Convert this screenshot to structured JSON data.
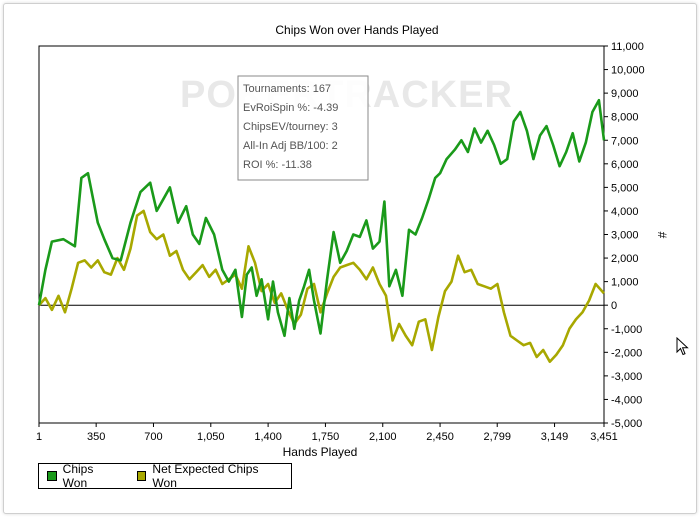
{
  "chart_data": {
    "type": "line",
    "title": "Chips Won over Hands Played",
    "xlabel": "Hands Played",
    "ylabel": "#",
    "xlim": [
      1,
      3451
    ],
    "ylim": [
      -5000,
      11000
    ],
    "x_ticks": [
      "1",
      "350",
      "700",
      "1,050",
      "1,400",
      "1,750",
      "2,100",
      "2,450",
      "2,799",
      "3,149",
      "3,451"
    ],
    "y_ticks": [
      "11,000",
      "10,000",
      "9,000",
      "8,000",
      "7,000",
      "6,000",
      "5,000",
      "4,000",
      "3,000",
      "2,000",
      "1,000",
      "0",
      "-1,000",
      "-2,000",
      "-3,000",
      "-4,000",
      "-5,000"
    ],
    "y_tick_values": [
      11000,
      10000,
      9000,
      8000,
      7000,
      6000,
      5000,
      4000,
      3000,
      2000,
      1000,
      0,
      -1000,
      -2000,
      -3000,
      -4000,
      -5000
    ],
    "x_tick_values": [
      1,
      350,
      700,
      1050,
      1400,
      1750,
      2100,
      2450,
      2799,
      3149,
      3451
    ],
    "grid": false,
    "legend_position": "bottom-left",
    "series": [
      {
        "name": "Chips Won",
        "color": "#1a9a1a",
        "x": [
          1,
          40,
          80,
          150,
          220,
          260,
          300,
          360,
          400,
          450,
          500,
          560,
          620,
          680,
          720,
          760,
          800,
          850,
          900,
          940,
          980,
          1020,
          1070,
          1120,
          1160,
          1200,
          1240,
          1270,
          1300,
          1330,
          1360,
          1400,
          1430,
          1460,
          1500,
          1530,
          1560,
          1590,
          1620,
          1650,
          1680,
          1720,
          1760,
          1800,
          1840,
          1880,
          1920,
          1960,
          2000,
          2040,
          2080,
          2110,
          2140,
          2180,
          2220,
          2260,
          2300,
          2340,
          2380,
          2420,
          2450,
          2490,
          2540,
          2580,
          2620,
          2660,
          2700,
          2740,
          2780,
          2820,
          2860,
          2900,
          2940,
          2980,
          3020,
          3060,
          3100,
          3140,
          3180,
          3220,
          3260,
          3300,
          3340,
          3380,
          3420,
          3451
        ],
        "y": [
          0,
          1500,
          2700,
          2800,
          2500,
          5400,
          5600,
          3500,
          2800,
          2000,
          1900,
          3500,
          4800,
          5200,
          4000,
          4500,
          5000,
          3500,
          4200,
          3000,
          2600,
          3700,
          3000,
          1500,
          1000,
          1500,
          -500,
          1300,
          1600,
          400,
          1100,
          -600,
          1000,
          -300,
          -1300,
          300,
          -1000,
          200,
          800,
          1500,
          200,
          -1200,
          1100,
          3100,
          1800,
          2300,
          3000,
          2900,
          3600,
          2400,
          2700,
          4400,
          800,
          1500,
          400,
          3200,
          3000,
          3700,
          4500,
          5400,
          5600,
          6200,
          6600,
          7000,
          6500,
          7500,
          6900,
          7400,
          6800,
          6000,
          6200,
          7800,
          8200,
          7400,
          6200,
          7200,
          7600,
          6800,
          5900,
          6500,
          7300,
          6100,
          6900,
          8200,
          8700,
          7000
        ]
      },
      {
        "name": "Net Expected Chips Won",
        "color": "#a8a800",
        "x": [
          1,
          40,
          80,
          120,
          160,
          200,
          240,
          280,
          320,
          360,
          400,
          440,
          480,
          520,
          560,
          600,
          640,
          680,
          720,
          760,
          800,
          840,
          880,
          920,
          960,
          1000,
          1040,
          1080,
          1120,
          1160,
          1200,
          1240,
          1280,
          1320,
          1360,
          1400,
          1440,
          1480,
          1520,
          1560,
          1600,
          1640,
          1680,
          1720,
          1760,
          1800,
          1840,
          1880,
          1920,
          1960,
          2000,
          2040,
          2080,
          2120,
          2160,
          2200,
          2240,
          2280,
          2320,
          2360,
          2400,
          2440,
          2480,
          2520,
          2560,
          2600,
          2640,
          2680,
          2720,
          2760,
          2800,
          2840,
          2880,
          2920,
          2960,
          3000,
          3040,
          3080,
          3120,
          3160,
          3200,
          3240,
          3280,
          3320,
          3360,
          3400,
          3451
        ],
        "y": [
          0,
          300,
          -200,
          400,
          -300,
          700,
          1800,
          1900,
          1600,
          1900,
          1400,
          1300,
          2000,
          1500,
          2400,
          3800,
          4000,
          3100,
          2800,
          3000,
          2100,
          2300,
          1500,
          1100,
          1400,
          1700,
          1200,
          1500,
          900,
          1100,
          1300,
          700,
          2500,
          1800,
          600,
          900,
          100,
          500,
          -200,
          -800,
          -400,
          700,
          900,
          -300,
          500,
          1200,
          1600,
          1700,
          1800,
          1500,
          1100,
          1600,
          900,
          400,
          -1500,
          -800,
          -1300,
          -1700,
          -700,
          -600,
          -1900,
          -500,
          600,
          1000,
          2100,
          1400,
          1500,
          900,
          800,
          700,
          900,
          -300,
          -1300,
          -1500,
          -1700,
          -1600,
          -2200,
          -1900,
          -2400,
          -2100,
          -1700,
          -1000,
          -600,
          -300,
          200,
          900,
          500
        ]
      }
    ]
  },
  "tooltip": {
    "lines": [
      "Tournaments: 167",
      "EvRoiSpin %: -4.39",
      "ChipsEV/tourney: 3",
      "All-In Adj BB/100: 2",
      "ROI %: -11.38"
    ]
  },
  "watermark": "POKERTRACKER",
  "legend": {
    "items": [
      {
        "label": "Chips Won",
        "color": "#1a9a1a"
      },
      {
        "label": "Net Expected Chips Won",
        "color": "#a8a800"
      }
    ]
  },
  "cursor_icon": "mouse-pointer-icon"
}
